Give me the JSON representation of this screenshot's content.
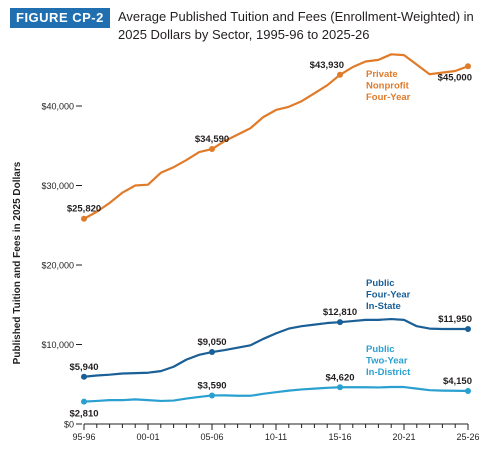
{
  "figure": {
    "label": "FIGURE CP-2",
    "title": "Average Published Tuition and Fees (Enrollment-Weighted) in 2025 Dollars by Sector, 1995-96 to 2025-26"
  },
  "chart_data": {
    "type": "line",
    "title": "Average Published Tuition and Fees (Enrollment-Weighted) in 2025 Dollars by Sector, 1995-96 to 2025-26",
    "xlabel": "",
    "ylabel": "Published Tuition and Fees in 2025 Dollars",
    "ylim": [
      0,
      50000
    ],
    "grid": false,
    "x_tick_labels": [
      "95-96",
      "00-01",
      "05-06",
      "10-11",
      "15-16",
      "20-21",
      "25-26"
    ],
    "y_ticks": [
      {
        "value": 0,
        "label": "$0"
      },
      {
        "value": 10000,
        "label": "$10,000"
      },
      {
        "value": 20000,
        "label": "$20,000"
      },
      {
        "value": 30000,
        "label": "$30,000"
      },
      {
        "value": 40000,
        "label": "$40,000"
      }
    ],
    "x": [
      "95-96",
      "96-97",
      "97-98",
      "98-99",
      "99-00",
      "00-01",
      "01-02",
      "02-03",
      "03-04",
      "04-05",
      "05-06",
      "06-07",
      "07-08",
      "08-09",
      "09-10",
      "10-11",
      "11-12",
      "12-13",
      "13-14",
      "14-15",
      "15-16",
      "16-17",
      "17-18",
      "18-19",
      "19-20",
      "20-21",
      "21-22",
      "22-23",
      "23-24",
      "24-25",
      "25-26"
    ],
    "series": [
      {
        "name": "Private Nonprofit Four-Year",
        "color": "#e07b2a",
        "values": [
          25820,
          26700,
          27800,
          29100,
          30000,
          30100,
          31600,
          32300,
          33200,
          34200,
          34590,
          35600,
          36400,
          37200,
          38600,
          39500,
          39900,
          40600,
          41600,
          42600,
          43930,
          44900,
          45600,
          45800,
          46500,
          46400,
          45200,
          44000,
          44200,
          44400,
          45000
        ],
        "labels": [
          {
            "index": 0,
            "text": "$25,820",
            "pos": "above"
          },
          {
            "index": 10,
            "text": "$34,590",
            "pos": "above"
          },
          {
            "index": 20,
            "text": "$43,930",
            "pos": "above-left"
          },
          {
            "index": 30,
            "text": "$45,000",
            "pos": "below-left"
          }
        ]
      },
      {
        "name": "Public Four-Year In-State",
        "color": "#1a5f96",
        "values": [
          5940,
          6100,
          6200,
          6350,
          6400,
          6450,
          6650,
          7200,
          8100,
          8700,
          9050,
          9300,
          9600,
          9900,
          10700,
          11400,
          12000,
          12300,
          12500,
          12700,
          12810,
          12950,
          13100,
          13100,
          13200,
          13100,
          12300,
          12000,
          11950,
          11950,
          11950
        ],
        "labels": [
          {
            "index": 0,
            "text": "$5,940",
            "pos": "above"
          },
          {
            "index": 10,
            "text": "$9,050",
            "pos": "above"
          },
          {
            "index": 20,
            "text": "$12,810",
            "pos": "above"
          },
          {
            "index": 30,
            "text": "$11,950",
            "pos": "above-left"
          }
        ]
      },
      {
        "name": "Public Two-Year In-District",
        "color": "#2aa0d0",
        "values": [
          2810,
          2900,
          3000,
          3000,
          3100,
          3000,
          2900,
          2950,
          3200,
          3400,
          3590,
          3600,
          3550,
          3550,
          3800,
          4000,
          4200,
          4350,
          4450,
          4550,
          4620,
          4620,
          4620,
          4600,
          4650,
          4650,
          4450,
          4250,
          4200,
          4180,
          4150
        ],
        "labels": [
          {
            "index": 0,
            "text": "$2,810",
            "pos": "below"
          },
          {
            "index": 10,
            "text": "$3,590",
            "pos": "above"
          },
          {
            "index": 20,
            "text": "$4,620",
            "pos": "above"
          },
          {
            "index": 30,
            "text": "$4,150",
            "pos": "above-left"
          }
        ]
      }
    ],
    "series_labels": [
      {
        "series": 0,
        "lines": [
          "Private",
          "Nonprofit",
          "Four-Year"
        ],
        "color": "#e07b2a"
      },
      {
        "series": 1,
        "lines": [
          "Public",
          "Four-Year",
          "In-State"
        ],
        "color": "#1a5f96"
      },
      {
        "series": 2,
        "lines": [
          "Public",
          "Two-Year",
          "In-District"
        ],
        "color": "#2aa0d0"
      }
    ]
  }
}
